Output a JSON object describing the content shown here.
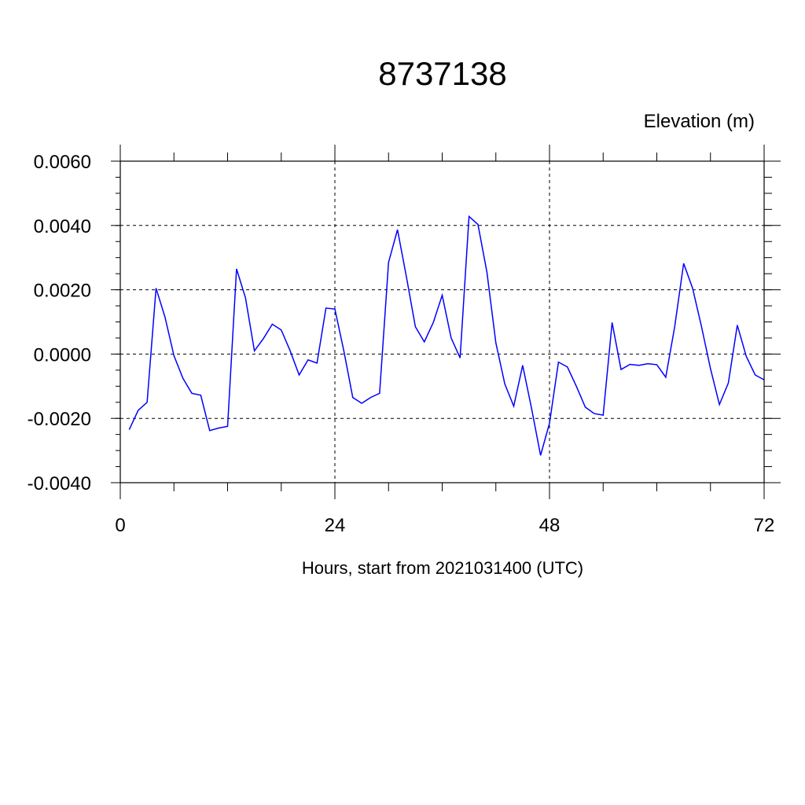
{
  "chart_data": {
    "type": "line",
    "title": "8737138",
    "ylabel": "Elevation (m)",
    "xlabel": "Hours, start from 2021031400 (UTC)",
    "xlim": [
      0,
      72
    ],
    "ylim": [
      -0.004,
      0.006
    ],
    "x_ticks": [
      0,
      24,
      48,
      72
    ],
    "x_tick_labels": [
      "0",
      "24",
      "48",
      "72"
    ],
    "y_ticks": [
      -0.004,
      -0.002,
      0.0,
      0.002,
      0.004,
      0.006
    ],
    "y_tick_labels": [
      "-0.0040",
      "-0.0020",
      "0.0000",
      "0.0020",
      "0.0040",
      "0.0060"
    ],
    "grid": true,
    "series": [
      {
        "color": "#0000ff",
        "x": [
          1,
          2,
          3,
          4,
          5,
          6,
          7,
          8,
          9,
          10,
          11,
          12,
          13,
          14,
          15,
          16,
          17,
          18,
          19,
          20,
          21,
          22,
          23,
          24,
          25,
          26,
          27,
          28,
          29,
          30,
          31,
          32,
          33,
          34,
          35,
          36,
          37,
          38,
          39,
          40,
          41,
          42,
          43,
          44,
          45,
          46,
          47,
          48,
          49,
          50,
          51,
          52,
          53,
          54,
          55,
          56,
          57,
          58,
          59,
          60,
          61,
          62,
          63,
          64,
          65,
          66,
          67,
          68,
          69,
          70,
          71,
          72
        ],
        "values": [
          -0.00235,
          -0.00175,
          -0.0015,
          0.00205,
          0.00115,
          -5e-05,
          -0.00075,
          -0.00122,
          -0.00128,
          -0.00238,
          -0.0023,
          -0.00225,
          0.00265,
          0.00175,
          0.0001,
          0.00048,
          0.00093,
          0.00075,
          0.0001,
          -0.00065,
          -0.00018,
          -0.00028,
          0.00143,
          0.0014,
          0.0001,
          -0.00135,
          -0.00153,
          -0.00135,
          -0.00122,
          0.00285,
          0.00387,
          0.0024,
          0.00085,
          0.00038,
          0.00098,
          0.00183,
          0.0005,
          -0.00012,
          0.00428,
          0.00403,
          0.00255,
          0.00035,
          -0.00093,
          -0.00162,
          -0.00035,
          -0.0017,
          -0.00315,
          -0.00215,
          -0.00025,
          -0.0004,
          -0.001,
          -0.00165,
          -0.00185,
          -0.0019,
          0.00098,
          -0.00048,
          -0.00032,
          -0.00035,
          -0.0003,
          -0.00033,
          -0.00072,
          0.00085,
          0.00282,
          0.00205,
          0.00085,
          -0.00045,
          -0.00157,
          -0.0009,
          0.0009,
          -7e-05,
          -0.00065,
          -0.0008
        ]
      }
    ]
  }
}
